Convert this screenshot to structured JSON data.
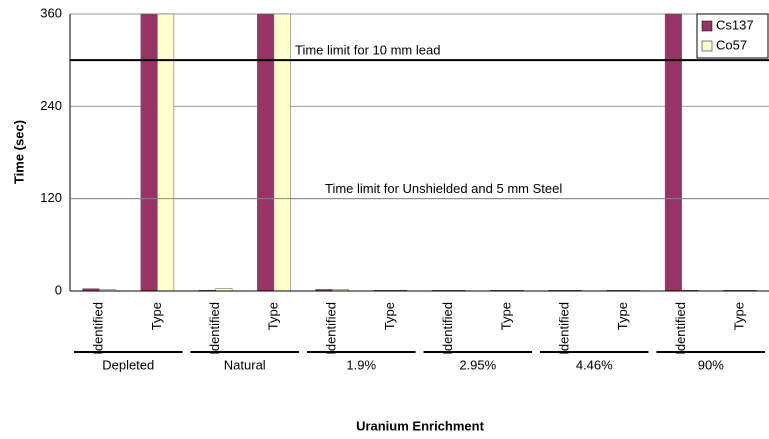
{
  "chart_data": {
    "type": "bar",
    "y_axis_title": "Time (sec)",
    "x_axis_title": "Uranium Enrichment",
    "categories": [
      "Identified",
      "Type",
      "Identified",
      "Type",
      "Identified",
      "Type",
      "Identified",
      "Type",
      "Identified",
      "Type",
      "Identified",
      "Type"
    ],
    "groups": [
      "Depleted",
      "Natural",
      "1.9%",
      "2.95%",
      "4.46%",
      "90%"
    ],
    "series": [
      {
        "name": "Cs137",
        "color": "#993366",
        "values": [
          3,
          360,
          1,
          360,
          2,
          1,
          1,
          1,
          1,
          1,
          360,
          1
        ]
      },
      {
        "name": "Co57",
        "color": "#ffffcc",
        "values": [
          2,
          360,
          3,
          360,
          2,
          1,
          1,
          1,
          1,
          1,
          1,
          1
        ]
      }
    ],
    "annotations": [
      {
        "text": "Time limit for 10 mm lead",
        "value": 300
      },
      {
        "text": "Time limit for Unshielded and 5 mm Steel",
        "value": 120
      }
    ],
    "ylim": [
      0,
      360
    ],
    "yticks": [
      0,
      120,
      240,
      360
    ],
    "grid": true,
    "legend": "top-right"
  }
}
